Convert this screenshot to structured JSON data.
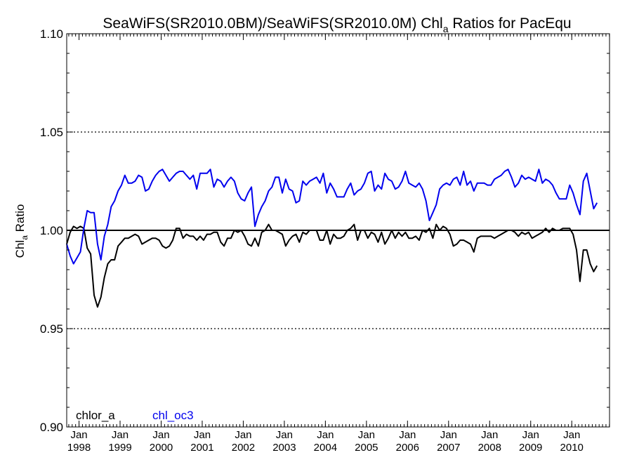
{
  "chart_data": {
    "type": "line",
    "title_main": "SeaWiFS(SR2010.0BM)/SeaWiFS(SR2010.0M)  Chl",
    "title_sub": "a",
    "title_tail": " Ratios for PacEqu",
    "ylabel_main": "Chl",
    "ylabel_sub": "a",
    "ylabel_tail": " Ratio",
    "ylim": [
      0.9,
      1.1
    ],
    "yticks": [
      "0.90",
      "0.95",
      "1.00",
      "1.05",
      "1.10"
    ],
    "y_tick_values": [
      0.9,
      0.95,
      1.0,
      1.05,
      1.1
    ],
    "dotted_gridlines": [
      0.95,
      1.05
    ],
    "reference_line": 1.0,
    "xlim": [
      1997.7,
      2010.92
    ],
    "x_tick_month": "Jan",
    "x_tick_years": [
      "1998",
      "1999",
      "2000",
      "2001",
      "2002",
      "2003",
      "2004",
      "2005",
      "2006",
      "2007",
      "2008",
      "2009",
      "2010"
    ],
    "x_tick_values": [
      1998,
      1999,
      2000,
      2001,
      2002,
      2003,
      2004,
      2005,
      2006,
      2007,
      2008,
      2009,
      2010
    ],
    "x_start": 1997.7,
    "x_step": 0.08333,
    "series": [
      {
        "name": "chlor_a",
        "color": "#000000",
        "values": [
          0.993,
          0.999,
          1.002,
          1.001,
          1.002,
          1.001,
          0.991,
          0.988,
          0.967,
          0.961,
          0.966,
          0.976,
          0.983,
          0.985,
          0.985,
          0.992,
          0.994,
          0.996,
          0.996,
          0.997,
          0.998,
          0.997,
          0.993,
          0.994,
          0.995,
          0.996,
          0.996,
          0.995,
          0.992,
          0.991,
          0.992,
          0.995,
          1.001,
          1.001,
          0.996,
          0.998,
          0.997,
          0.997,
          0.995,
          0.997,
          0.995,
          0.998,
          0.998,
          0.999,
          0.999,
          0.994,
          0.992,
          0.996,
          0.996,
          1.0,
          0.999,
          1.0,
          0.997,
          0.993,
          0.992,
          0.996,
          0.992,
          0.999,
          1.0,
          1.003,
          1.0,
          1.0,
          0.999,
          0.998,
          0.992,
          0.995,
          0.997,
          0.998,
          0.994,
          0.999,
          0.998,
          1.0,
          1.0,
          1.0,
          0.995,
          0.995,
          1.0,
          0.993,
          0.998,
          0.996,
          0.996,
          0.997,
          1.0,
          1.001,
          1.003,
          0.995,
          1.0,
          1.0,
          0.996,
          0.999,
          0.998,
          0.994,
          0.999,
          0.993,
          0.996,
          1.0,
          0.996,
          0.999,
          0.997,
          0.999,
          0.996,
          0.996,
          0.997,
          0.995,
          1.0,
          0.999,
          1.001,
          0.996,
          1.003,
          1.0,
          1.002,
          1.001,
          0.998,
          0.992,
          0.993,
          0.995,
          0.995,
          0.994,
          0.993,
          0.989,
          0.996,
          0.997,
          0.997,
          0.997,
          0.997,
          0.996,
          0.997,
          0.998,
          0.999,
          1.0,
          1.0,
          0.999,
          0.997,
          0.999,
          0.998,
          0.999,
          0.996,
          0.997,
          0.998,
          0.999,
          1.001,
          0.999,
          1.001,
          1.0,
          1.0,
          1.001,
          1.001,
          1.001,
          0.998,
          0.99,
          0.974,
          0.99,
          0.99,
          0.983,
          0.979,
          0.982
        ]
      },
      {
        "name": "chl_oc3",
        "color": "#0000ee",
        "values": [
          0.993,
          0.987,
          0.983,
          0.986,
          0.989,
          1.001,
          1.01,
          1.009,
          1.009,
          0.993,
          0.985,
          0.997,
          1.003,
          1.012,
          1.015,
          1.02,
          1.023,
          1.028,
          1.024,
          1.024,
          1.025,
          1.028,
          1.027,
          1.02,
          1.021,
          1.025,
          1.028,
          1.03,
          1.031,
          1.028,
          1.025,
          1.027,
          1.029,
          1.03,
          1.03,
          1.028,
          1.026,
          1.028,
          1.021,
          1.029,
          1.029,
          1.029,
          1.031,
          1.022,
          1.026,
          1.025,
          1.022,
          1.025,
          1.027,
          1.025,
          1.019,
          1.016,
          1.015,
          1.019,
          1.022,
          1.002,
          1.008,
          1.012,
          1.015,
          1.02,
          1.022,
          1.027,
          1.027,
          1.019,
          1.026,
          1.021,
          1.02,
          1.014,
          1.015,
          1.025,
          1.023,
          1.025,
          1.026,
          1.027,
          1.024,
          1.029,
          1.019,
          1.024,
          1.021,
          1.017,
          1.017,
          1.017,
          1.021,
          1.024,
          1.018,
          1.02,
          1.021,
          1.024,
          1.029,
          1.03,
          1.02,
          1.023,
          1.021,
          1.029,
          1.026,
          1.025,
          1.021,
          1.022,
          1.025,
          1.03,
          1.024,
          1.023,
          1.022,
          1.024,
          1.021,
          1.015,
          1.005,
          1.009,
          1.013,
          1.021,
          1.023,
          1.024,
          1.023,
          1.026,
          1.027,
          1.023,
          1.03,
          1.023,
          1.025,
          1.02,
          1.024,
          1.024,
          1.024,
          1.023,
          1.023,
          1.026,
          1.027,
          1.028,
          1.03,
          1.031,
          1.027,
          1.022,
          1.024,
          1.028,
          1.026,
          1.027,
          1.026,
          1.025,
          1.031,
          1.024,
          1.026,
          1.025,
          1.023,
          1.019,
          1.016,
          1.016,
          1.016,
          1.023,
          1.019,
          1.013,
          1.008,
          1.025,
          1.029,
          1.02,
          1.011,
          1.014
        ]
      }
    ],
    "legend_position": "bottom-left"
  }
}
